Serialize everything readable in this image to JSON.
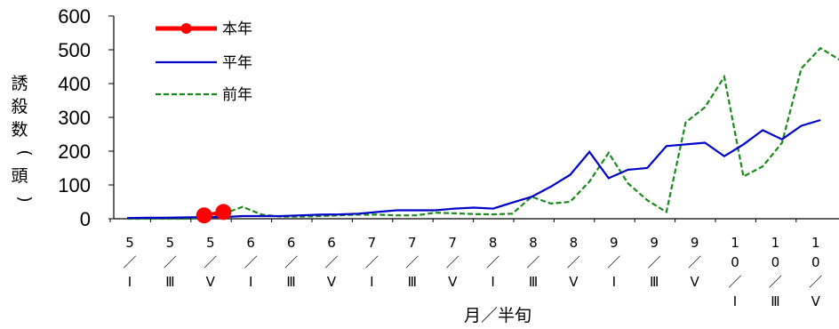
{
  "chart_data": {
    "type": "line",
    "xlabel": "月／半旬",
    "ylabel": "誘殺数(頭)",
    "ylim": [
      0,
      600
    ],
    "yticks": [
      "0",
      "100",
      "200",
      "300",
      "400",
      "500",
      "600"
    ],
    "tick_labels": [
      {
        "lines": [
          "5",
          "／",
          "Ⅰ"
        ]
      },
      {
        "lines": [
          "5",
          "／",
          "Ⅲ"
        ]
      },
      {
        "lines": [
          "5",
          "／",
          "Ⅴ"
        ]
      },
      {
        "lines": [
          "6",
          "／",
          "Ⅰ"
        ]
      },
      {
        "lines": [
          "6",
          "／",
          "Ⅲ"
        ]
      },
      {
        "lines": [
          "6",
          "／",
          "Ⅴ"
        ]
      },
      {
        "lines": [
          "7",
          "／",
          "Ⅰ"
        ]
      },
      {
        "lines": [
          "7",
          "／",
          "Ⅲ"
        ]
      },
      {
        "lines": [
          "7",
          "／",
          "Ⅴ"
        ]
      },
      {
        "lines": [
          "8",
          "／",
          "Ⅰ"
        ]
      },
      {
        "lines": [
          "8",
          "／",
          "Ⅲ"
        ]
      },
      {
        "lines": [
          "8",
          "／",
          "Ⅴ"
        ]
      },
      {
        "lines": [
          "9",
          "／",
          "Ⅰ"
        ]
      },
      {
        "lines": [
          "9",
          "／",
          "Ⅲ"
        ]
      },
      {
        "lines": [
          "9",
          "／",
          "Ⅴ"
        ]
      },
      {
        "lines": [
          "1",
          "0",
          "／",
          "Ⅰ"
        ]
      },
      {
        "lines": [
          "1",
          "0",
          "／",
          "Ⅲ"
        ]
      },
      {
        "lines": [
          "1",
          "0",
          "／",
          "Ⅴ"
        ]
      }
    ],
    "series": [
      {
        "name": "本年",
        "color": "#ff0000",
        "style": "solid-thick-markers",
        "values": [
          null,
          null,
          null,
          null,
          10,
          20
        ]
      },
      {
        "name": "平年",
        "color": "#0000cc",
        "style": "solid",
        "values": [
          2,
          3,
          3,
          4,
          5,
          5,
          8,
          8,
          8,
          10,
          12,
          13,
          15,
          20,
          25,
          25,
          25,
          30,
          33,
          30,
          48,
          65,
          95,
          130,
          198,
          120,
          145,
          150,
          215,
          220,
          225,
          185,
          220,
          262,
          235,
          275,
          292
        ]
      },
      {
        "name": "前年",
        "color": "#1a8a1a",
        "style": "dashed",
        "values": [
          0,
          0,
          0,
          0,
          2,
          15,
          35,
          12,
          6,
          6,
          8,
          10,
          12,
          12,
          10,
          10,
          18,
          16,
          14,
          13,
          15,
          65,
          45,
          50,
          110,
          195,
          105,
          55,
          20,
          285,
          330,
          420,
          125,
          155,
          225,
          445,
          505,
          470
        ]
      }
    ],
    "legend_position": "top-left",
    "grid": false
  }
}
